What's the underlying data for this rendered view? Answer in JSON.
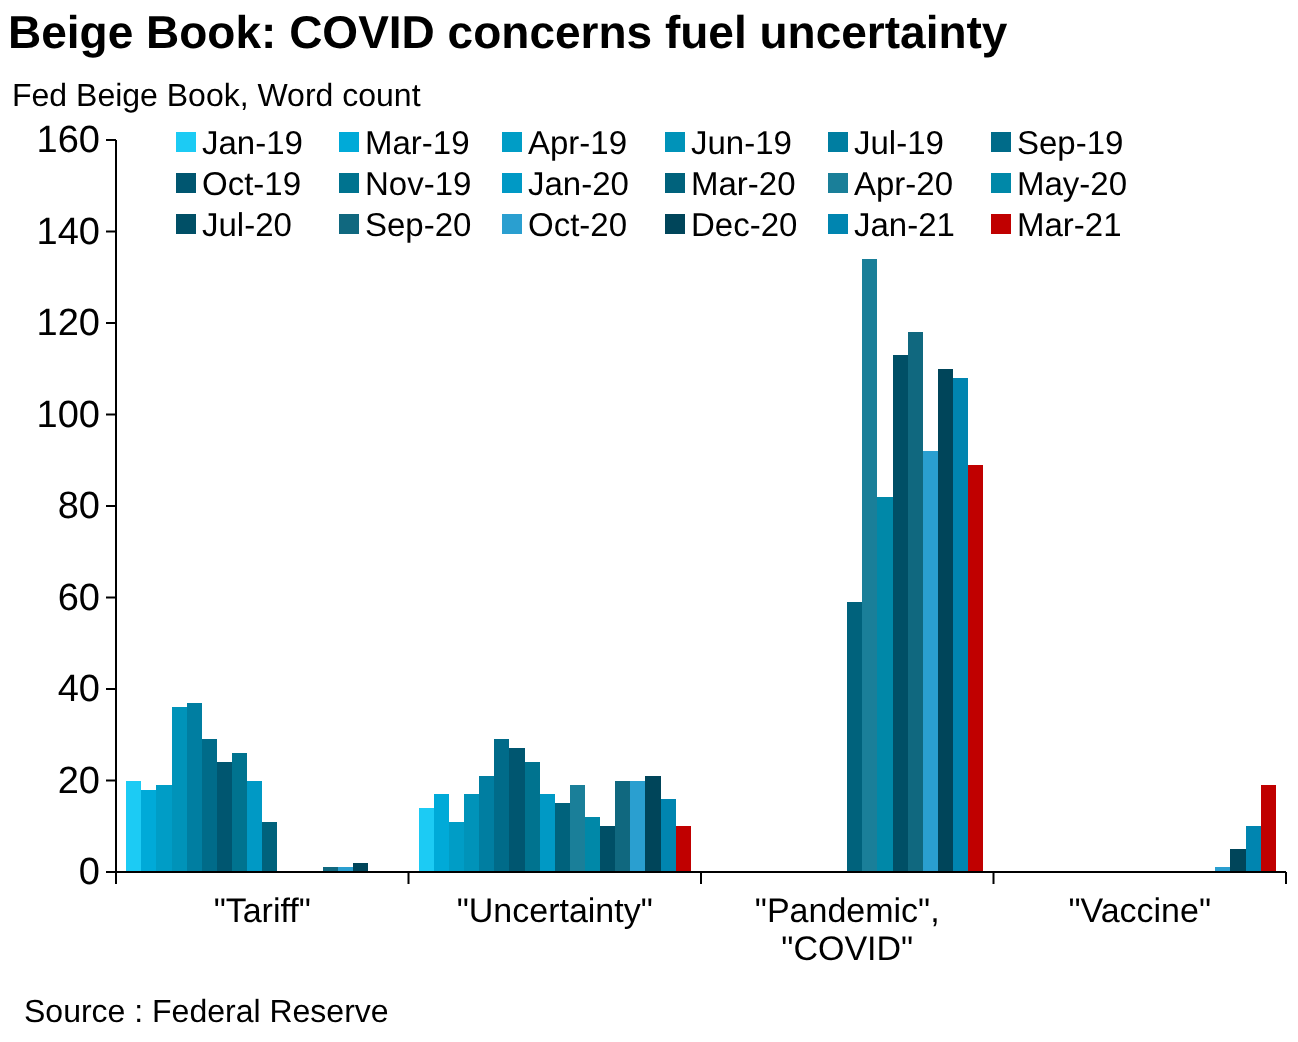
{
  "chart_data": {
    "type": "bar",
    "title": "Beige Book: COVID concerns fuel uncertainty",
    "subtitle": "Fed Beige Book, Word count",
    "annotations": [
      "Source : Federal Reserve"
    ],
    "categories": [
      "\"Tariff\"",
      "\"Uncertainty\"",
      "\"Pandemic\", \"COVID\"",
      "\"Vaccine\""
    ],
    "series": [
      {
        "name": "Jan-19",
        "color": "#1ccbf4",
        "values": [
          20,
          14,
          0,
          0
        ]
      },
      {
        "name": "Mar-19",
        "color": "#00aad8",
        "values": [
          18,
          17,
          0,
          0
        ]
      },
      {
        "name": "Apr-19",
        "color": "#009dc6",
        "values": [
          19,
          11,
          0,
          0
        ]
      },
      {
        "name": "Jun-19",
        "color": "#0093b9",
        "values": [
          36,
          17,
          0,
          0
        ]
      },
      {
        "name": "Jul-19",
        "color": "#007ea1",
        "values": [
          37,
          21,
          0,
          0
        ]
      },
      {
        "name": "Sep-19",
        "color": "#006b89",
        "values": [
          29,
          29,
          0,
          0
        ]
      },
      {
        "name": "Oct-19",
        "color": "#005670",
        "values": [
          24,
          27,
          0,
          0
        ]
      },
      {
        "name": "Nov-19",
        "color": "#00738f",
        "values": [
          26,
          24,
          0,
          0
        ]
      },
      {
        "name": "Jan-20",
        "color": "#0099c5",
        "values": [
          20,
          17,
          0,
          0
        ]
      },
      {
        "name": "Mar-20",
        "color": "#00627c",
        "values": [
          11,
          15,
          59,
          0
        ]
      },
      {
        "name": "Apr-20",
        "color": "#1a7f99",
        "values": [
          0,
          19,
          134,
          0
        ]
      },
      {
        "name": "May-20",
        "color": "#0088a8",
        "values": [
          0,
          12,
          82,
          0
        ]
      },
      {
        "name": "Jul-20",
        "color": "#004f66",
        "values": [
          0,
          10,
          113,
          0
        ]
      },
      {
        "name": "Sep-20",
        "color": "#10687f",
        "values": [
          1,
          20,
          118,
          0
        ]
      },
      {
        "name": "Oct-20",
        "color": "#2a9fd0",
        "values": [
          1,
          20,
          92,
          1
        ]
      },
      {
        "name": "Dec-20",
        "color": "#00455a",
        "values": [
          2,
          21,
          110,
          5
        ]
      },
      {
        "name": "Jan-21",
        "color": "#0085b0",
        "values": [
          0,
          16,
          108,
          10
        ]
      },
      {
        "name": "Mar-21",
        "color": "#c00000",
        "values": [
          0,
          10,
          89,
          19
        ]
      }
    ],
    "ylim": [
      0,
      160
    ],
    "yticks": [
      0,
      20,
      40,
      60,
      80,
      100,
      120,
      140,
      160
    ],
    "grid": false,
    "legend": "top right"
  }
}
